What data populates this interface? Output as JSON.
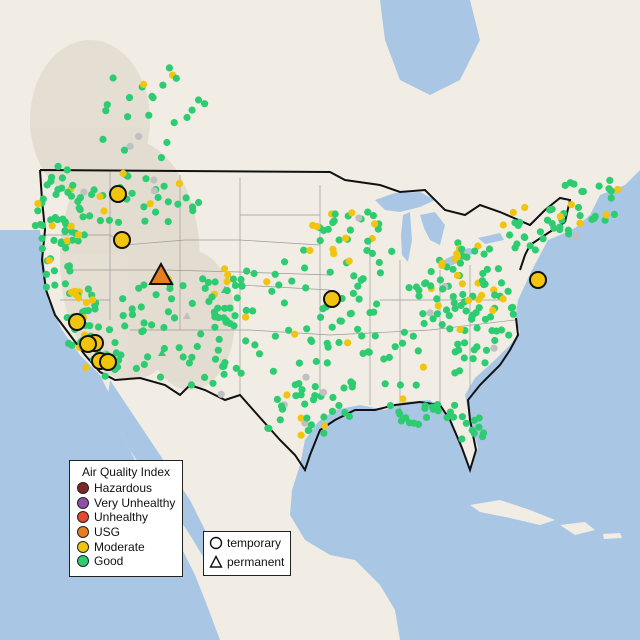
{
  "legend": {
    "title": "Air Quality Index",
    "categories": [
      {
        "label": "Hazardous",
        "color": "#7e2626"
      },
      {
        "label": "Very Unhealthy",
        "color": "#8f4fa3"
      },
      {
        "label": "Unhealthy",
        "color": "#e34a33"
      },
      {
        "label": "USG",
        "color": "#e67e22"
      },
      {
        "label": "Moderate",
        "color": "#f1c40f"
      },
      {
        "label": "Good",
        "color": "#2ecc71"
      }
    ],
    "site_types": [
      {
        "label": "temporary",
        "symbol": "circle"
      },
      {
        "label": "permanent",
        "symbol": "triangle"
      }
    ]
  },
  "colors": {
    "ocean": "#a9c7e4",
    "land": "#f1ede4",
    "mountains": "#e2dcd0",
    "border": "#111111",
    "state_line": "#9a9a9a",
    "no_data_monitor": "#c0c0c0"
  }
}
